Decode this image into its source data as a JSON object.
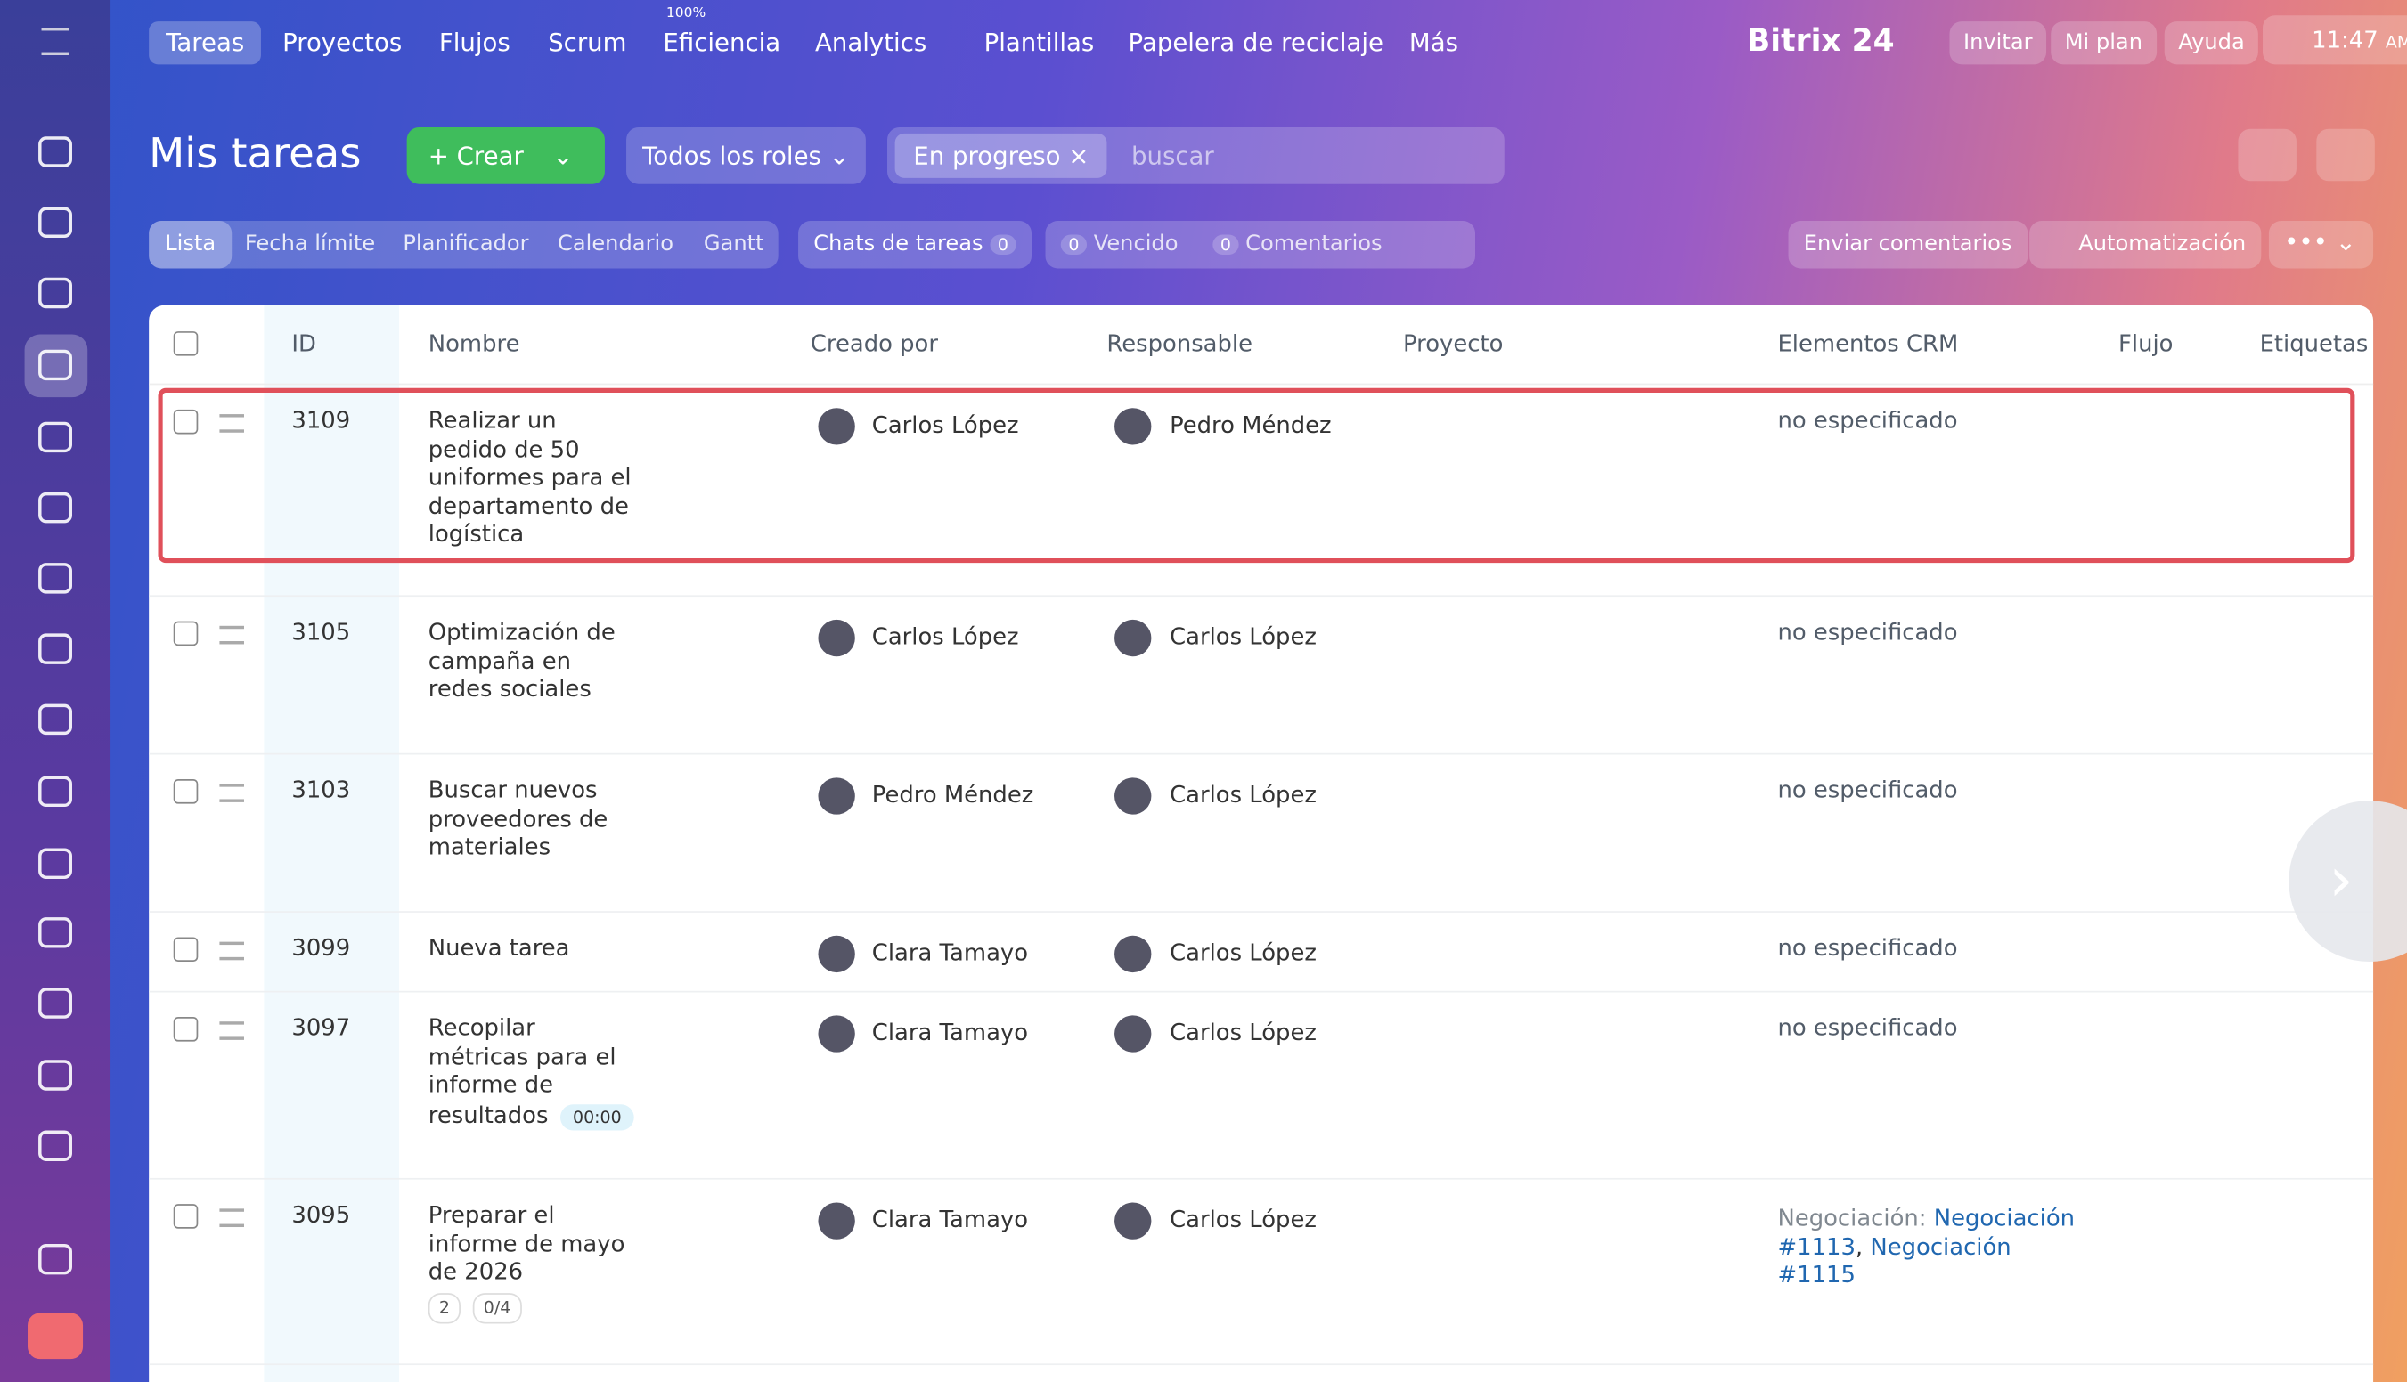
{
  "topnav": {
    "items": [
      "Tareas",
      "Proyectos",
      "Flujos",
      "Scrum",
      "Eficiencia",
      "Analytics",
      "Plantillas",
      "Papelera de reciclaje",
      "Más"
    ],
    "efficiency_badge": "100%",
    "brand": "Bitrix 24",
    "buttons": [
      "Invitar",
      "Mi plan",
      "Ayuda"
    ],
    "time": "11:47",
    "ampm": "AM"
  },
  "header": {
    "title": "Mis tareas",
    "create": "Crear",
    "roles": "Todos los roles",
    "filter_tag": "En progreso",
    "search_placeholder": "buscar"
  },
  "views": {
    "tabs": [
      "Lista",
      "Fecha límite",
      "Planificador",
      "Calendario",
      "Gantt"
    ],
    "chats": "Chats de tareas",
    "chats_count": "0",
    "overdue_count": "0",
    "overdue": "Vencido",
    "comments_count": "0",
    "comments": "Comentarios",
    "send_feedback": "Enviar comentarios",
    "automation": "Automatización"
  },
  "table": {
    "columns": [
      "ID",
      "Nombre",
      "Creado por",
      "Responsable",
      "Proyecto",
      "Elementos CRM",
      "Flujo",
      "Etiquetas"
    ],
    "rows": [
      {
        "id": "3109",
        "name": "Realizar un pedido de 50 uniformes para el departamento de logística",
        "creator": "Carlos López",
        "responsible": "Pedro Méndez",
        "crm": "no especificado"
      },
      {
        "id": "3105",
        "name": "Optimización de campaña en redes sociales",
        "creator": "Carlos López",
        "responsible": "Carlos López",
        "crm": "no especificado"
      },
      {
        "id": "3103",
        "name": "Buscar nuevos proveedores de materiales",
        "creator": "Pedro Méndez",
        "responsible": "Carlos López",
        "crm": "no especificado"
      },
      {
        "id": "3099",
        "name": "Nueva tarea",
        "creator": "Clara Tamayo",
        "responsible": "Carlos López",
        "crm": "no especificado"
      },
      {
        "id": "3097",
        "name": "Recopilar métricas para el informe de resultados",
        "timer": "00:00",
        "creator": "Clara Tamayo",
        "responsible": "Carlos López",
        "crm": "no especificado"
      },
      {
        "id": "3095",
        "name": "Preparar el informe de mayo de 2026",
        "files": "2",
        "checklist": "0/4",
        "creator": "Clara Tamayo",
        "responsible": "Carlos López",
        "crm_label": "Negociación:",
        "crm_links": [
          "Negociación #1113",
          "Negociación #1115"
        ]
      }
    ]
  }
}
